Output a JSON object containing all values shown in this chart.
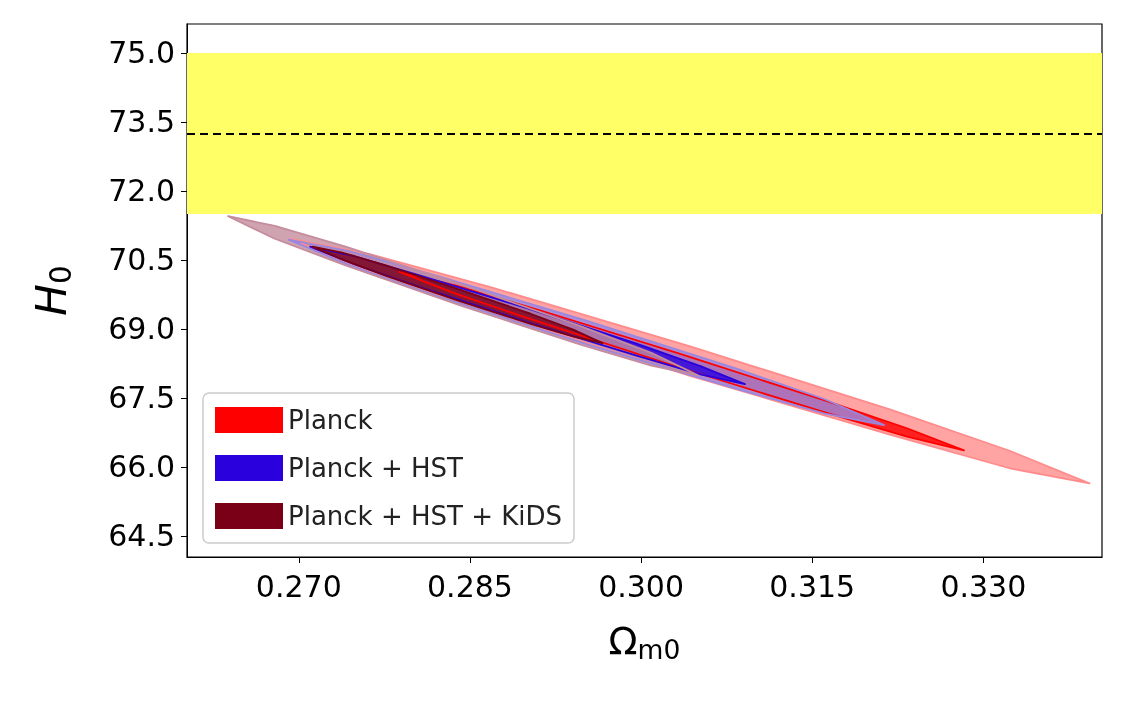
{
  "chart_data": {
    "type": "area",
    "xlabel": "Ω$_{m0}$",
    "ylabel": "H$_{0}$",
    "xlim": [
      0.2602,
      0.3404
    ],
    "ylim": [
      64.04,
      75.63
    ],
    "xticks": [
      {
        "value": 0.27,
        "label": "0.270"
      },
      {
        "value": 0.285,
        "label": "0.285"
      },
      {
        "value": 0.3,
        "label": "0.300"
      },
      {
        "value": 0.315,
        "label": "0.315"
      },
      {
        "value": 0.33,
        "label": "0.330"
      }
    ],
    "yticks": [
      {
        "value": 64.5,
        "label": "64.5"
      },
      {
        "value": 66,
        "label": "66.0"
      },
      {
        "value": 67.5,
        "label": "67.5"
      },
      {
        "value": 69,
        "label": "69.0"
      },
      {
        "value": 70.5,
        "label": "70.5"
      },
      {
        "value": 72,
        "label": "72.0"
      },
      {
        "value": 73.5,
        "label": "73.5"
      },
      {
        "value": 75,
        "label": "75.0"
      }
    ],
    "bands": [
      {
        "axis": "y",
        "from": 71.5,
        "to": 75.0,
        "color": "#ffff66"
      }
    ],
    "ref_lines": [
      {
        "axis": "y",
        "value": 73.24,
        "color": "#000000",
        "line_style": "dashed"
      }
    ],
    "grid": false,
    "legend": "bottom left",
    "series": [
      {
        "color": "#ff8c8c",
        "x": [
          0.2693,
          0.2763,
          0.2868,
          0.3043,
          0.3218,
          0.3323,
          0.3393,
          0.3323,
          0.3218,
          0.3043,
          0.2868,
          0.2763
        ],
        "values": [
          70.96,
          70.62,
          69.91,
          68.62,
          67.25,
          66.35,
          65.64,
          65.97,
          66.7,
          67.98,
          69.36,
          70.24
        ]
      },
      {
        "name": "Planck",
        "color": "#ff0000",
        "x": [
          0.2788,
          0.2838,
          0.2912,
          0.3035,
          0.3159,
          0.3233,
          0.3283,
          0.3233,
          0.3159,
          0.3035,
          0.2912,
          0.2838
        ],
        "values": [
          70.24,
          69.94,
          69.4,
          68.45,
          67.46,
          66.84,
          66.36,
          66.66,
          67.2,
          68.15,
          69.14,
          69.76
        ]
      },
      {
        "color": "#9a87e0",
        "x": [
          0.2691,
          0.2744,
          0.2822,
          0.2952,
          0.3083,
          0.3161,
          0.3213,
          0.3161,
          0.3083,
          0.2952,
          0.2822,
          0.2744
        ],
        "values": [
          70.94,
          70.69,
          70.15,
          69.18,
          68.14,
          67.47,
          66.91,
          67.16,
          67.7,
          68.67,
          69.71,
          70.39
        ]
      },
      {
        "name": "Planck + HST",
        "color": "#2a00dd",
        "x": [
          0.271,
          0.2749,
          0.2805,
          0.29,
          0.2996,
          0.3052,
          0.3091,
          0.3052,
          0.2996,
          0.29,
          0.2805,
          0.2749
        ],
        "values": [
          70.79,
          70.58,
          70.17,
          69.45,
          68.68,
          68.19,
          67.8,
          68.01,
          68.42,
          69.15,
          69.92,
          70.4
        ]
      },
      {
        "color": "#c48c9c",
        "x": [
          0.2638,
          0.2679,
          0.2741,
          0.2844,
          0.2947,
          0.3009,
          0.305,
          0.3009,
          0.2947,
          0.2844,
          0.2741,
          0.2679
        ],
        "values": [
          71.45,
          71.24,
          70.79,
          69.95,
          69.06,
          68.48,
          67.99,
          68.2,
          68.66,
          69.49,
          70.38,
          70.96
        ]
      },
      {
        "name": "Planck + HST + KiDS",
        "color": "#7a0018",
        "x": [
          0.2712,
          0.2738,
          0.2776,
          0.2839,
          0.2903,
          0.2941,
          0.2966,
          0.2941,
          0.2903,
          0.2839,
          0.2776,
          0.2738
        ],
        "values": [
          70.79,
          70.66,
          70.38,
          69.87,
          69.33,
          68.98,
          68.69,
          68.83,
          69.11,
          69.62,
          70.16,
          70.51
        ]
      }
    ]
  }
}
